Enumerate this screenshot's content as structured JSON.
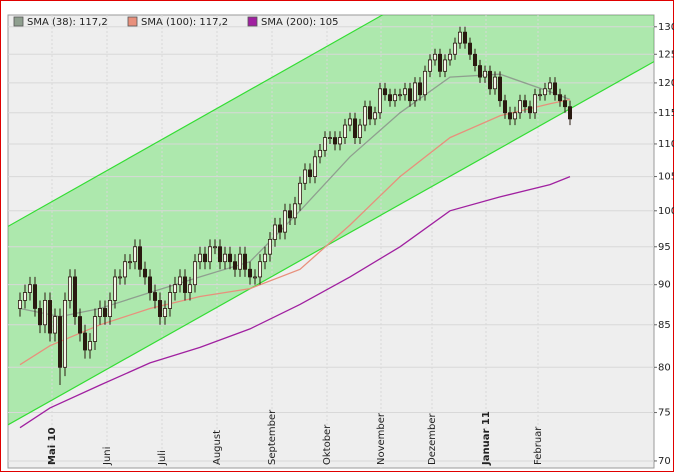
{
  "chart_data": {
    "type": "candlestick",
    "log_scale": true,
    "grid": true,
    "candle_color": "#2a1a10",
    "xlim": [
      -2.4,
      126.8
    ],
    "ylim": [
      69.3,
      132.2
    ],
    "yticks": [
      70,
      75,
      80,
      85,
      90,
      95,
      100,
      105,
      110,
      115,
      120,
      125,
      130
    ],
    "xticks": [
      {
        "value": 6.4,
        "label": "Mai 10"
      },
      {
        "value": 17.4,
        "label": "Juni"
      },
      {
        "value": 28.4,
        "label": "Juli"
      },
      {
        "value": 39.4,
        "label": "August"
      },
      {
        "value": 50.4,
        "label": "September"
      },
      {
        "value": 61.4,
        "label": "Oktober"
      },
      {
        "value": 72.2,
        "label": "November"
      },
      {
        "value": 82.4,
        "label": "Dezember"
      },
      {
        "value": 93.2,
        "label": "Januar 11"
      },
      {
        "value": 103.6,
        "label": "Februar"
      }
    ],
    "bold_xticks": [
      0,
      8
    ],
    "open": [
      87,
      88,
      89,
      90,
      87,
      85,
      88,
      84,
      86,
      80,
      88,
      91,
      86,
      84,
      82,
      83,
      86,
      87,
      86,
      88,
      91,
      91,
      93,
      93,
      95,
      92,
      91,
      89,
      88,
      86,
      87,
      89,
      90,
      91,
      89,
      90,
      93,
      94,
      93,
      95,
      95,
      93,
      94,
      93,
      92,
      94,
      92,
      91,
      91,
      93,
      94,
      96,
      98,
      97,
      100,
      99,
      101,
      104,
      106,
      105,
      108,
      109,
      111,
      111,
      110,
      111,
      113,
      114,
      111,
      113,
      116,
      114,
      115,
      119,
      118,
      117,
      118,
      118,
      119,
      117,
      120,
      118,
      122,
      124,
      125,
      122,
      124,
      125,
      127,
      129,
      127,
      125,
      123,
      121,
      122,
      119,
      121,
      117,
      115,
      114,
      115,
      117,
      116,
      115,
      118,
      118,
      119,
      120,
      118,
      117,
      116
    ],
    "high": [
      89,
      90,
      91,
      91,
      88,
      89,
      89,
      87,
      87,
      89,
      92,
      92,
      87,
      85,
      84,
      87,
      88,
      88,
      89,
      92,
      92,
      94,
      94,
      96,
      96,
      93,
      92,
      90,
      89,
      88,
      90,
      91,
      92,
      92,
      91,
      94,
      95,
      95,
      96,
      96,
      96,
      95,
      95,
      94,
      95,
      95,
      93,
      92,
      94,
      95,
      97,
      99,
      99,
      101,
      101,
      102,
      105,
      107,
      107,
      109,
      110,
      112,
      112,
      112,
      112,
      114,
      115,
      115,
      114,
      117,
      117,
      116,
      120,
      120,
      119,
      119,
      119,
      120,
      120,
      121,
      121,
      123,
      125,
      126,
      126,
      125,
      126,
      128,
      130,
      130,
      128,
      126,
      124,
      123,
      123,
      122,
      122,
      118,
      116,
      116,
      118,
      118,
      117,
      119,
      119,
      120,
      121,
      121,
      119,
      118,
      117
    ],
    "low": [
      86,
      87,
      88,
      86,
      84,
      84,
      83,
      83,
      78,
      79,
      87,
      85,
      83,
      81,
      81,
      82,
      85,
      85,
      85,
      87,
      90,
      90,
      92,
      92,
      91,
      90,
      88,
      87,
      85,
      85,
      86,
      88,
      89,
      88,
      88,
      89,
      92,
      92,
      92,
      94,
      92,
      92,
      92,
      91,
      91,
      91,
      90,
      90,
      90,
      92,
      93,
      95,
      96,
      96,
      98,
      98,
      100,
      103,
      104,
      104,
      107,
      108,
      110,
      109,
      109,
      110,
      112,
      110,
      110,
      112,
      113,
      113,
      114,
      117,
      116,
      116,
      117,
      117,
      116,
      116,
      117,
      117,
      121,
      123,
      121,
      121,
      123,
      124,
      126,
      126,
      124,
      122,
      120,
      120,
      118,
      118,
      116,
      114,
      113,
      113,
      114,
      115,
      114,
      114,
      117,
      117,
      118,
      117,
      116,
      115,
      113
    ],
    "close": [
      88,
      89,
      90,
      87,
      85,
      88,
      84,
      86,
      80,
      88,
      91,
      86,
      84,
      82,
      83,
      86,
      87,
      86,
      88,
      91,
      91,
      93,
      93,
      95,
      92,
      91,
      89,
      88,
      86,
      87,
      89,
      90,
      91,
      89,
      90,
      93,
      94,
      93,
      95,
      95,
      93,
      94,
      93,
      92,
      94,
      92,
      91,
      91,
      93,
      94,
      96,
      98,
      97,
      100,
      99,
      101,
      104,
      106,
      105,
      108,
      109,
      111,
      111,
      110,
      111,
      113,
      114,
      111,
      113,
      116,
      114,
      115,
      119,
      118,
      117,
      118,
      118,
      119,
      117,
      120,
      118,
      122,
      124,
      125,
      122,
      124,
      125,
      127,
      129,
      127,
      125,
      123,
      121,
      122,
      119,
      121,
      117,
      115,
      114,
      115,
      117,
      116,
      115,
      118,
      118,
      119,
      120,
      118,
      117,
      116,
      114
    ],
    "series": [
      {
        "name": "SMA (38): 117,2",
        "color": "#8f9f8f",
        "x": [
          0,
          8,
          16,
          26,
          36,
          46,
          56,
          66,
          76,
          86,
          96,
          106,
          110
        ],
        "values": [
          87,
          86,
          87,
          89,
          91,
          93,
          100,
          108,
          115,
          121,
          121.5,
          118.5,
          117.2
        ]
      },
      {
        "name": "SMA (100): 117,2",
        "color": "#e8907c",
        "x": [
          0,
          6,
          16,
          26,
          36,
          46,
          56,
          66,
          76,
          86,
          96,
          106,
          110
        ],
        "values": [
          80.3,
          82.5,
          85,
          87,
          88.5,
          89.5,
          92,
          98,
          105,
          111,
          114.5,
          116.5,
          117.2
        ]
      },
      {
        "name": "SMA (200): 105",
        "color": "#a020a0",
        "x": [
          0,
          6,
          16,
          26,
          36,
          46,
          56,
          66,
          76,
          86,
          96,
          106,
          110
        ],
        "values": [
          73.4,
          75.5,
          78,
          80.5,
          82.3,
          84.5,
          87.5,
          91,
          95,
          100,
          102,
          103.8,
          105
        ]
      }
    ],
    "channel": {
      "color": "#33dd33",
      "x": [
        -2.4,
        126.8
      ],
      "upper": [
        97.8,
        164.5
      ],
      "lower": [
        73.7,
        123.7
      ]
    }
  }
}
